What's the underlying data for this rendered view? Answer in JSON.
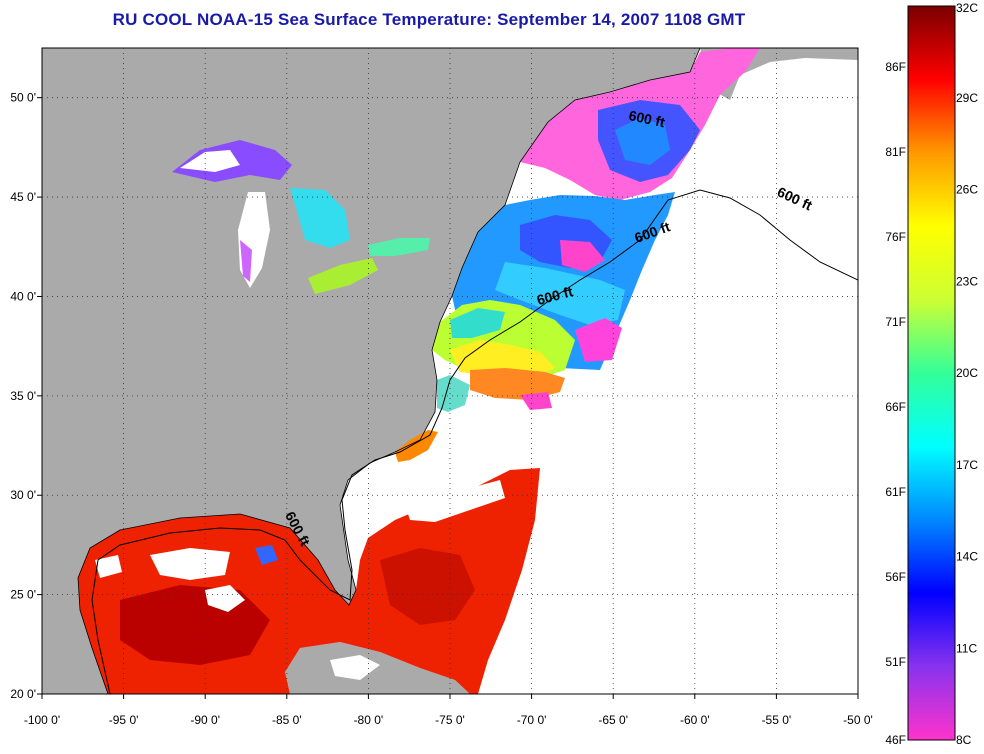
{
  "title": "RU COOL  NOAA-15  Sea Surface Temperature:  September 14, 2007 1108 GMT",
  "map": {
    "lon_range": [
      -100,
      -50
    ],
    "lat_range": [
      20,
      52.5
    ],
    "lon_ticks": [
      {
        "value": -100,
        "label": "-100 0'"
      },
      {
        "value": -95,
        "label": "-95 0'"
      },
      {
        "value": -90,
        "label": "-90 0'"
      },
      {
        "value": -85,
        "label": "-85 0'"
      },
      {
        "value": -80,
        "label": "-80 0'"
      },
      {
        "value": -75,
        "label": "-75 0'"
      },
      {
        "value": -70,
        "label": "-70 0'"
      },
      {
        "value": -65,
        "label": "-65 0'"
      },
      {
        "value": -60,
        "label": "-60 0'"
      },
      {
        "value": -55,
        "label": "-55 0'"
      },
      {
        "value": -50,
        "label": "-50 0'"
      }
    ],
    "lat_ticks": [
      {
        "value": 20,
        "label": "20 0'"
      },
      {
        "value": 25,
        "label": "25 0'"
      },
      {
        "value": 30,
        "label": "30 0'"
      },
      {
        "value": 35,
        "label": "35 0'"
      },
      {
        "value": 40,
        "label": "40 0'"
      },
      {
        "value": 45,
        "label": "45 0'"
      },
      {
        "value": 50,
        "label": "50 0'"
      }
    ],
    "grid": true,
    "contour_labels": [
      {
        "text": "600 ft",
        "lon": -63.0,
        "lat": 48.7,
        "rotate": 12
      },
      {
        "text": "600 ft",
        "lon": -54.0,
        "lat": 44.7,
        "rotate": 25
      },
      {
        "text": "600 ft",
        "lon": -62.5,
        "lat": 43.0,
        "rotate": -20
      },
      {
        "text": "600 ft",
        "lon": -68.5,
        "lat": 39.8,
        "rotate": -15
      },
      {
        "text": "600 ft",
        "lon": -84.6,
        "lat": 28.2,
        "rotate": 62
      }
    ]
  },
  "colorbar": {
    "celsius_labels": [
      "32C",
      "29C",
      "26C",
      "23C",
      "20C",
      "17C",
      "14C",
      "11C",
      "8C"
    ],
    "fahrenheit_labels": [
      "86F",
      "81F",
      "76F",
      "71F",
      "66F",
      "61F",
      "56F",
      "51F",
      "46F"
    ],
    "range_c": [
      8,
      32
    ],
    "colors": [
      "#ff33cc",
      "#8833ee",
      "#0000ff",
      "#0088ff",
      "#00ffff",
      "#33ff99",
      "#ccff33",
      "#ffff00",
      "#ff9900",
      "#ff0000",
      "#7a0000"
    ]
  },
  "palette": {
    "land": "#aaaaaa",
    "no_data": "#ffffff",
    "title": "#1a1aa8"
  }
}
